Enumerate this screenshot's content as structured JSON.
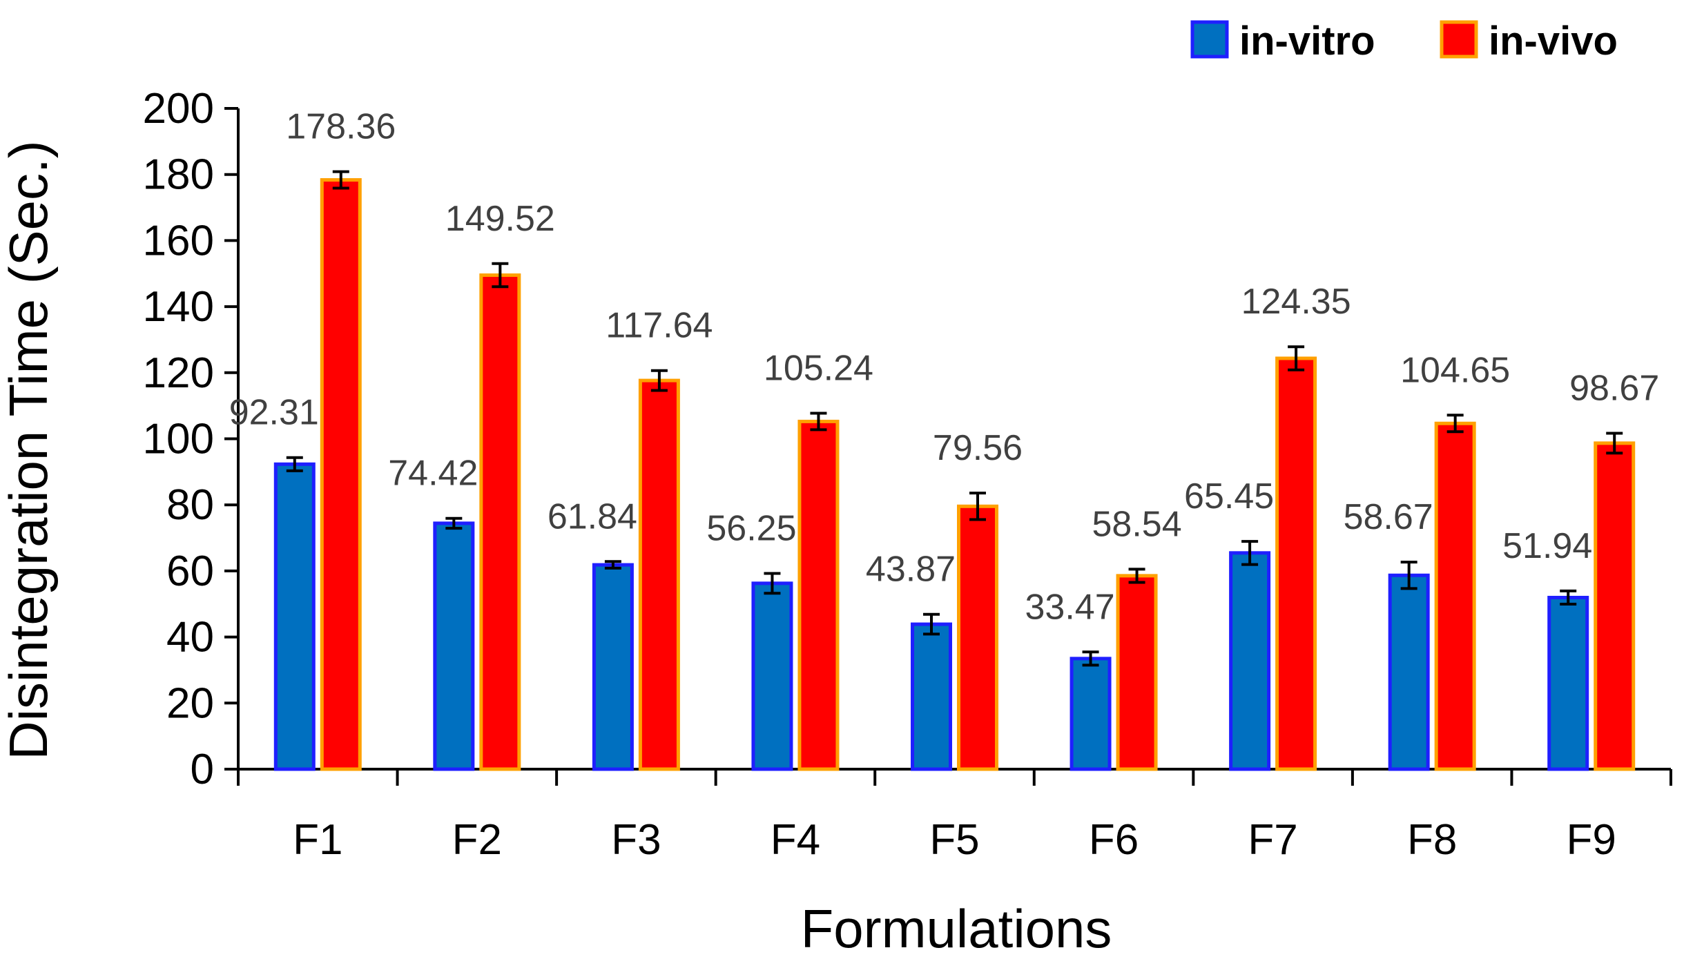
{
  "chart_data": {
    "type": "bar",
    "title": "",
    "xlabel": "Formulations",
    "ylabel": "Disintegration Time (Sec.)",
    "ylim": [
      0,
      200
    ],
    "yticks": [
      0,
      20,
      40,
      60,
      80,
      100,
      120,
      140,
      160,
      180,
      200
    ],
    "ytick_labels": [
      "0",
      "20",
      "40",
      "60",
      "80",
      "100",
      "120",
      "140",
      "160",
      "180",
      "200"
    ],
    "categories": [
      "F1",
      "F2",
      "F3",
      "F4",
      "F5",
      "F6",
      "F7",
      "F8",
      "F9"
    ],
    "grid": false,
    "legend_position": "top-right",
    "series": [
      {
        "name": "in-vitro",
        "fill": "#0070C0",
        "border": "#1F1FFF",
        "values": [
          92.31,
          74.42,
          61.84,
          56.25,
          43.87,
          33.47,
          65.45,
          58.67,
          51.94
        ],
        "labels": [
          "92.31",
          "74.42",
          "61.84",
          "56.25",
          "43.87",
          "33.47",
          "65.45",
          "58.67",
          "51.94"
        ],
        "errors": [
          2,
          1.5,
          1,
          3,
          3,
          2,
          3.5,
          4,
          2
        ]
      },
      {
        "name": "in-vivo",
        "fill": "#FF0000",
        "border": "#FFA000",
        "values": [
          178.36,
          149.52,
          117.64,
          105.24,
          79.56,
          58.54,
          124.35,
          104.65,
          98.67
        ],
        "labels": [
          "178.36",
          "149.52",
          "117.64",
          "105.24",
          "79.56",
          "58.54",
          "124.35",
          "104.65",
          "98.67"
        ],
        "errors": [
          2.5,
          3.5,
          3,
          2.5,
          4,
          2,
          3.5,
          2.5,
          3
        ]
      }
    ]
  }
}
